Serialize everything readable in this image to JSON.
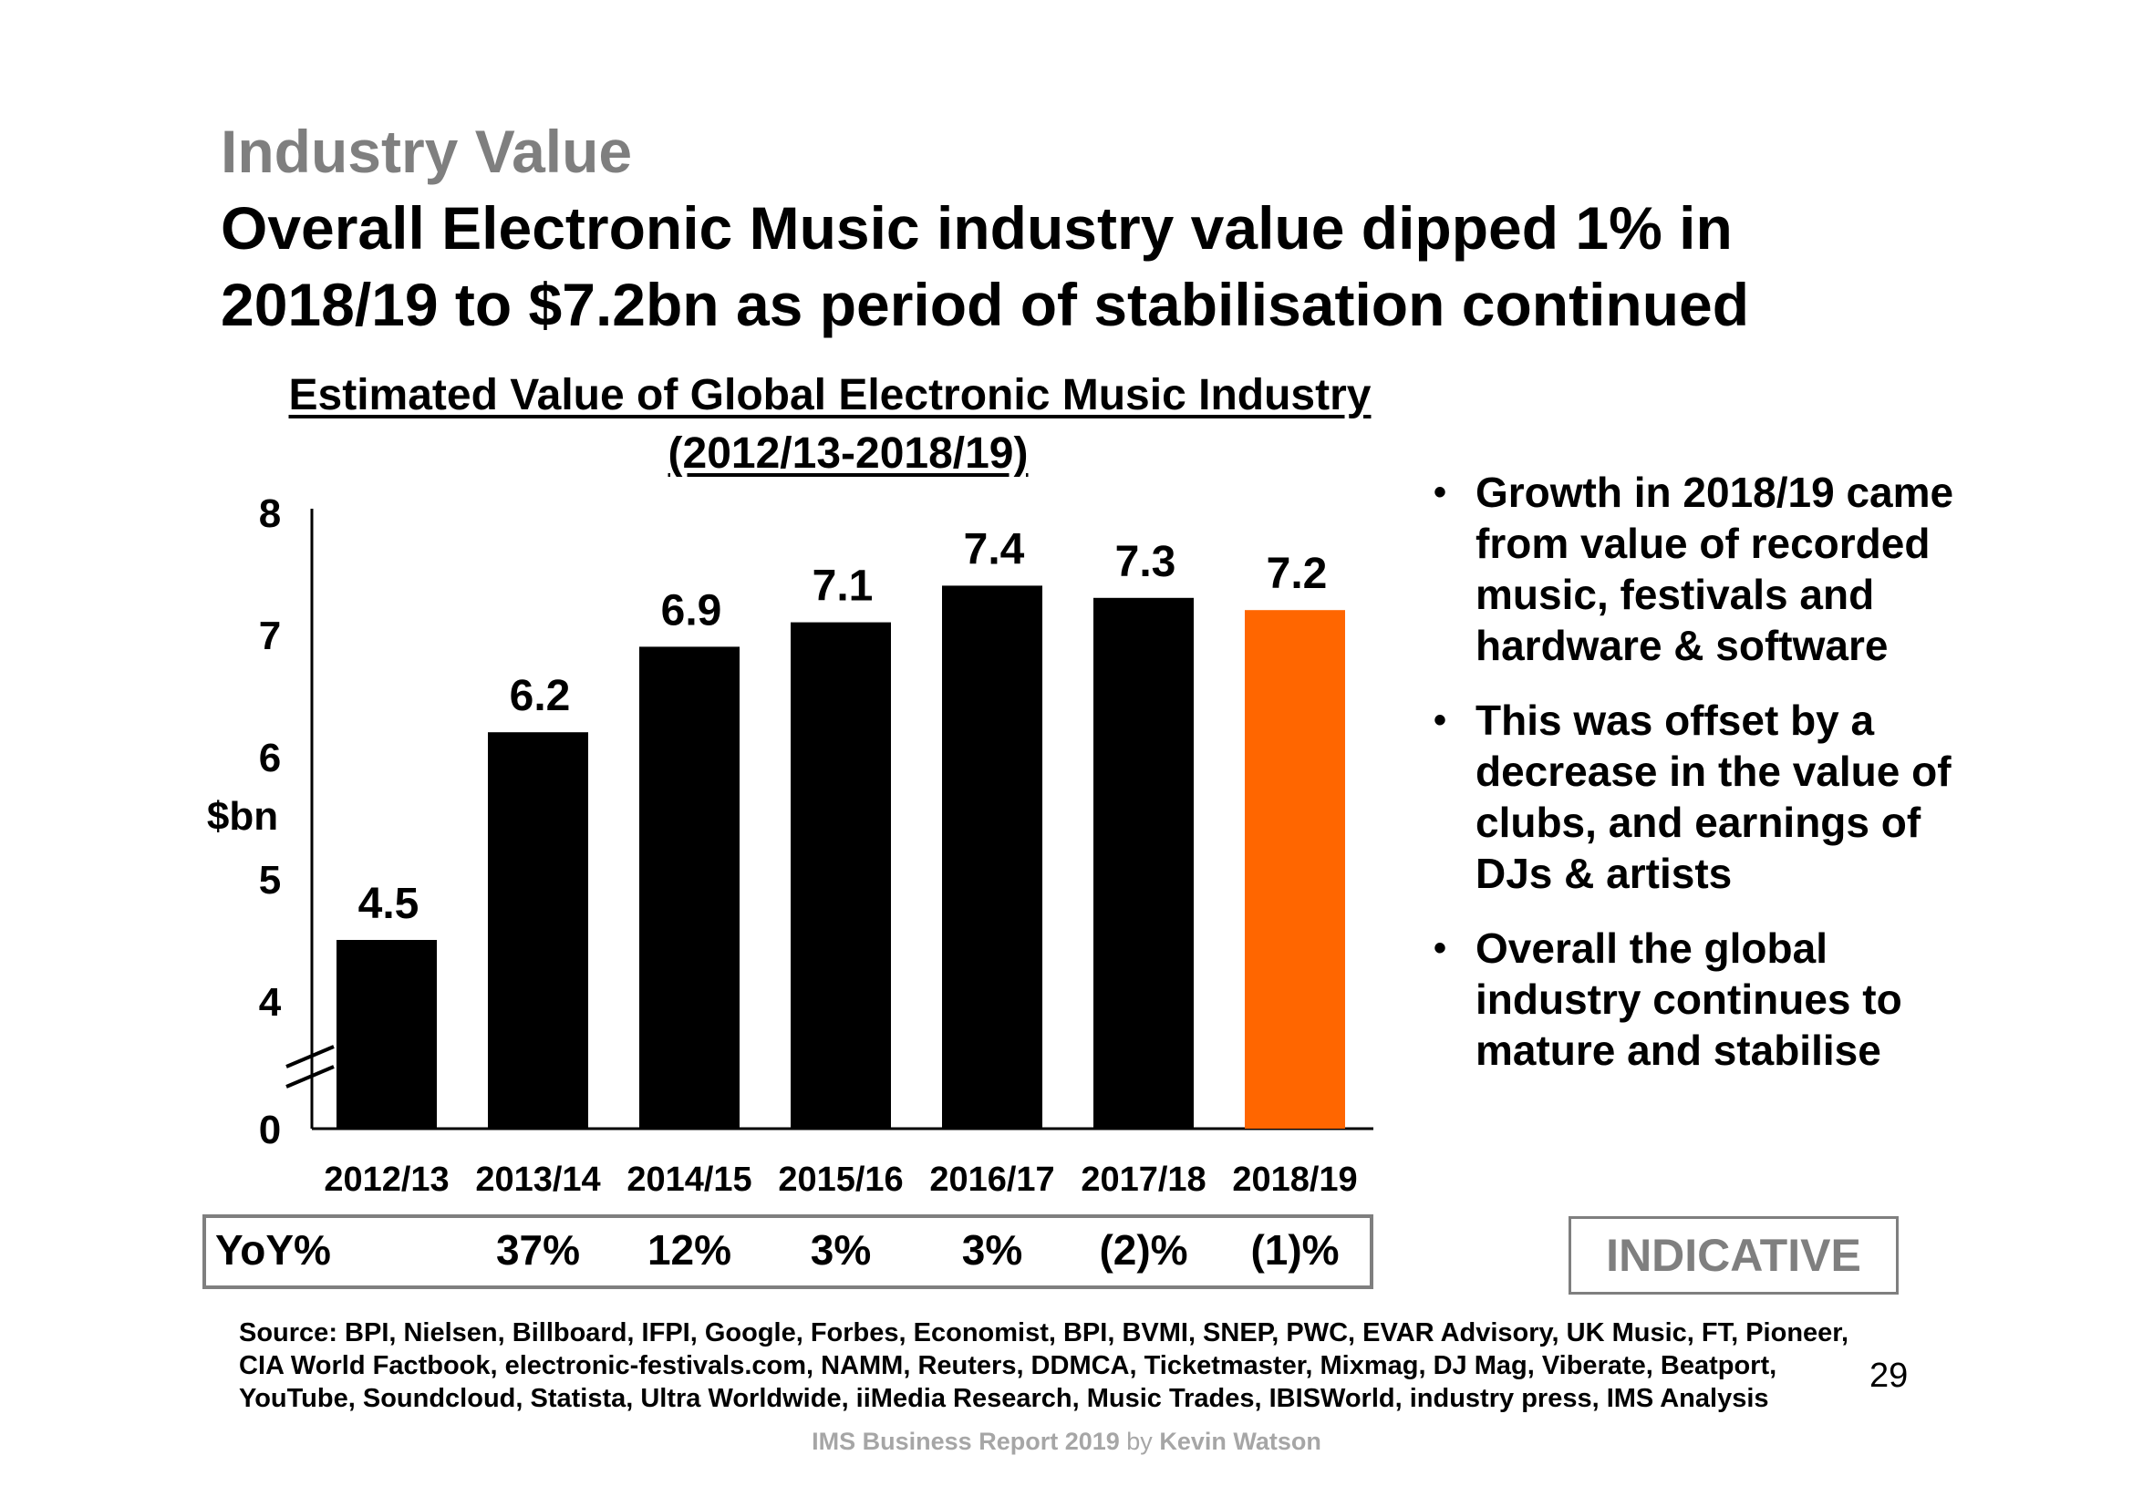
{
  "kicker": "Industry Value",
  "headline": "Overall Electronic Music industry value dipped 1% in 2018/19 to $7.2bn as period of stabilisation continued",
  "chart_data": {
    "type": "bar",
    "title_line1": "Estimated Value of Global Electronic Music Industry",
    "title_line2": "(2012/13-2018/19)",
    "categories": [
      "2012/13",
      "2013/14",
      "2014/15",
      "2015/16",
      "2016/17",
      "2017/18",
      "2018/19"
    ],
    "values": [
      4.5,
      6.2,
      6.9,
      7.1,
      7.4,
      7.3,
      7.2
    ],
    "value_labels": [
      "4.5",
      "6.2",
      "6.9",
      "7.1",
      "7.4",
      "7.3",
      "7.2"
    ],
    "ylabel": "$bn",
    "yticks": [
      "0",
      "4",
      "5",
      "6",
      "7",
      "8"
    ],
    "ylim": [
      0,
      8
    ],
    "axis_break": "between 0 and 4",
    "bar_color": "#000000",
    "highlight_color": "#ff6600",
    "highlight_index": 6
  },
  "yoy": {
    "label": "YoY%",
    "values": [
      "",
      "37%",
      "12%",
      "3%",
      "3%",
      "(2)%",
      "(1)%"
    ]
  },
  "bullets": [
    "Growth in 2018/19 came from value of recorded music, festivals and hardware & software",
    "This was offset by a decrease in the value of clubs, and earnings of DJs & artists",
    "Overall the global industry continues to mature and stabilise"
  ],
  "indicative_label": "INDICATIVE",
  "source": "Source: BPI, Nielsen, Billboard, IFPI, Google, Forbes, Economist, BPI, BVMI, SNEP, PWC, EVAR Advisory, UK Music, FT, Pioneer, CIA World Factbook, electronic-festivals.com, NAMM, Reuters, DDMCA, Ticketmaster, Mixmag, DJ Mag, Viberate, Beatport, YouTube, Soundcloud, Statista, Ultra Worldwide, iiMedia Research, Music Trades, IBISWorld, industry press, IMS Analysis",
  "page_number": "29",
  "footer": {
    "report": "IMS Business Report 2019",
    "by": "by",
    "author": "Kevin Watson"
  }
}
